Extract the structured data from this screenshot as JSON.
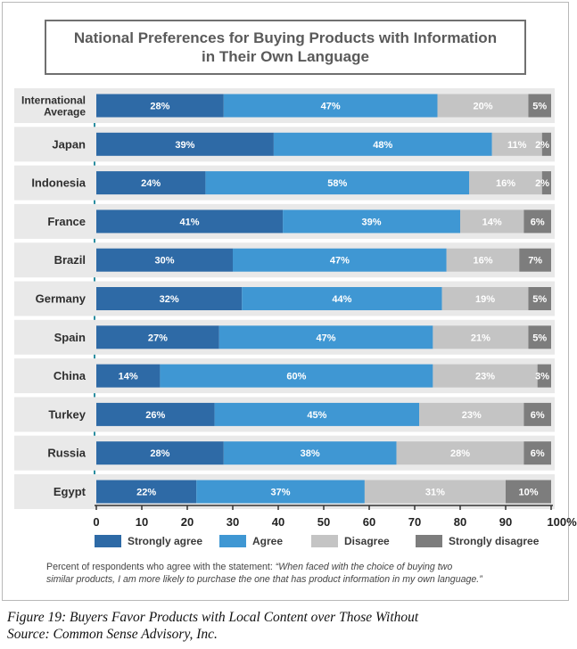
{
  "colors": {
    "strongly_agree": "#2e6aa6",
    "agree": "#3f97d3",
    "disagree": "#c4c4c4",
    "strongly_disagree": "#7d7d7d",
    "row_band": "#e9e9e9"
  },
  "chart_data": {
    "type": "bar",
    "orientation": "horizontal",
    "stacked": true,
    "title": "National Preferences for Buying Products with Information in Their Own Language",
    "categories": [
      "International Average",
      "Japan",
      "Indonesia",
      "France",
      "Brazil",
      "Germany",
      "Spain",
      "China",
      "Turkey",
      "Russia",
      "Egypt"
    ],
    "category_lines": [
      [
        "International",
        "Average"
      ],
      [
        "Japan"
      ],
      [
        "Indonesia"
      ],
      [
        "France"
      ],
      [
        "Brazil"
      ],
      [
        "Germany"
      ],
      [
        "Spain"
      ],
      [
        "China"
      ],
      [
        "Turkey"
      ],
      [
        "Russia"
      ],
      [
        "Egypt"
      ]
    ],
    "series": [
      {
        "name": "Strongly agree",
        "values": [
          28,
          39,
          24,
          41,
          30,
          32,
          27,
          14,
          26,
          28,
          22
        ],
        "labels": [
          "28%",
          "39%",
          "24%",
          "41%",
          "30%",
          "32%",
          "27%",
          "14%",
          "26%",
          "28%",
          "22%"
        ]
      },
      {
        "name": "Agree",
        "values": [
          47,
          48,
          58,
          39,
          47,
          44,
          47,
          60,
          45,
          38,
          37
        ],
        "labels": [
          "47%",
          "48%",
          "58%",
          "39%",
          "47%",
          "44%",
          "47%",
          "60%",
          "45%",
          "38%",
          "37%"
        ]
      },
      {
        "name": "Disagree",
        "values": [
          20,
          11,
          16,
          14,
          16,
          19,
          21,
          23,
          23,
          28,
          31
        ],
        "labels": [
          "20%",
          "11%",
          "16%",
          "14%",
          "16%",
          "19%",
          "21%",
          "23%",
          "23%",
          "28%",
          "31%"
        ]
      },
      {
        "name": "Strongly disagree",
        "values": [
          5,
          2,
          2,
          6,
          7,
          5,
          5,
          3,
          6,
          6,
          10
        ],
        "labels": [
          "5%",
          "2%",
          "2%",
          "6%",
          "7%",
          "5%",
          "5%",
          "3%",
          "6%",
          "6%",
          "10%"
        ]
      }
    ],
    "xlim": [
      0,
      100
    ],
    "x_ticks": [
      "0",
      "10",
      "20",
      "30",
      "40",
      "50",
      "60",
      "70",
      "80",
      "90",
      "100%"
    ],
    "legend_position": "bottom",
    "grid": false
  },
  "note": {
    "prefix": "Percent of respondents who agree with the statement: ",
    "quote_line1": "“When faced with the choice of buying two",
    "quote_line2": "similar products, I am more likely to purchase the one that has product information in my own language.”"
  },
  "caption": {
    "line1": "Figure 19: Buyers Favor Products with Local Content over Those Without",
    "line2": "Source: Common Sense Advisory, Inc."
  }
}
